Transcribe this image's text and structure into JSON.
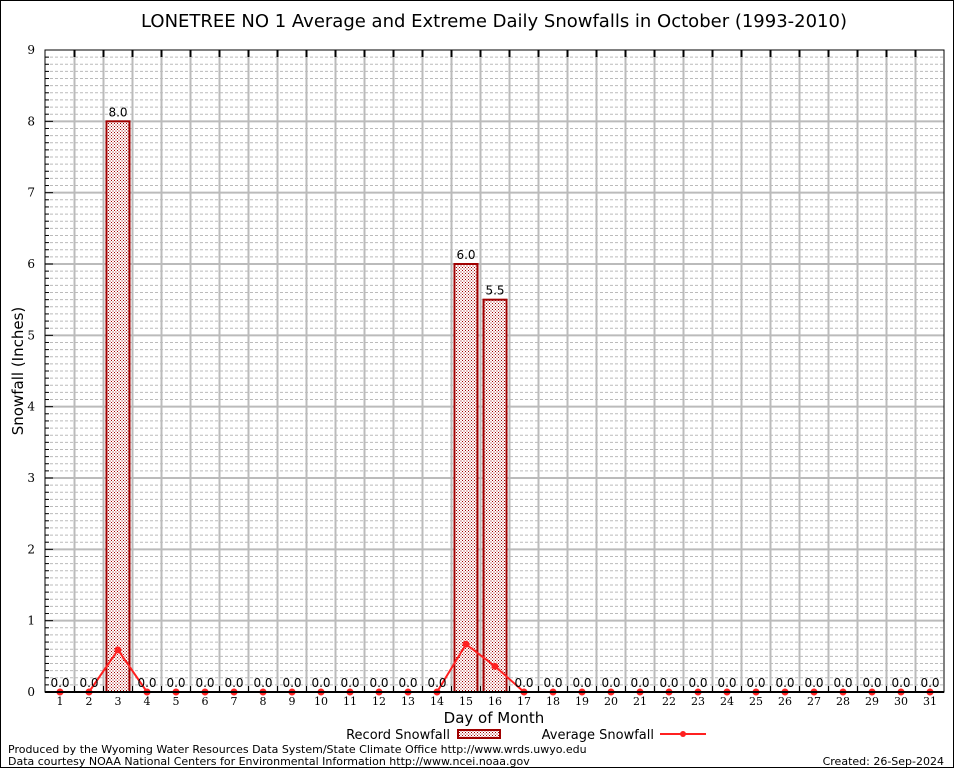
{
  "chart_data": {
    "type": "bar",
    "title": "LONETREE NO 1 Average and Extreme Daily Snowfalls in October (1993-2010)",
    "xlabel": "Day of Month",
    "ylabel": "Snowfall (Inches)",
    "ylim": [
      0,
      9
    ],
    "yticks": [
      "0",
      "1",
      "2",
      "3",
      "4",
      "5",
      "6",
      "7",
      "8",
      "9"
    ],
    "categories": [
      "1",
      "2",
      "3",
      "4",
      "5",
      "6",
      "7",
      "8",
      "9",
      "10",
      "11",
      "12",
      "13",
      "14",
      "15",
      "16",
      "17",
      "18",
      "19",
      "20",
      "21",
      "22",
      "23",
      "24",
      "25",
      "26",
      "27",
      "28",
      "29",
      "30",
      "31"
    ],
    "grid": true,
    "legend_position": "bottom",
    "series": [
      {
        "name": "Record Snowfall",
        "type": "bar",
        "color": "#a00000",
        "values": [
          0,
          0,
          8.0,
          0,
          0,
          0,
          0,
          0,
          0,
          0,
          0,
          0,
          0,
          0,
          6.0,
          5.5,
          0,
          0,
          0,
          0,
          0,
          0,
          0,
          0,
          0,
          0,
          0,
          0,
          0,
          0,
          0
        ],
        "labels": [
          "0.0",
          "0.0",
          "8.0",
          "0.0",
          "0.0",
          "0.0",
          "0.0",
          "0.0",
          "0.0",
          "0.0",
          "0.0",
          "0.0",
          "0.0",
          "0.0",
          "6.0",
          "5.5",
          "0.0",
          "0.0",
          "0.0",
          "0.0",
          "0.0",
          "0.0",
          "0.0",
          "0.0",
          "0.0",
          "0.0",
          "0.0",
          "0.0",
          "0.0",
          "0.0",
          "0.0"
        ]
      },
      {
        "name": "Average Snowfall",
        "type": "line",
        "color": "#ff2020",
        "values": [
          0,
          0,
          0.59,
          0,
          0,
          0,
          0,
          0,
          0,
          0,
          0,
          0,
          0,
          0,
          0.67,
          0.36,
          0,
          0,
          0,
          0,
          0,
          0,
          0,
          0,
          0,
          0,
          0,
          0,
          0,
          0,
          0
        ]
      }
    ]
  },
  "footer": {
    "produced": "Produced by the Wyoming Water Resources Data System/State Climate Office http://www.wrds.uwyo.edu",
    "courtesy": "Data courtesy NOAA National Centers for Environmental Information http://www.ncei.noaa.gov",
    "created": "Created:  26-Sep-2024"
  }
}
